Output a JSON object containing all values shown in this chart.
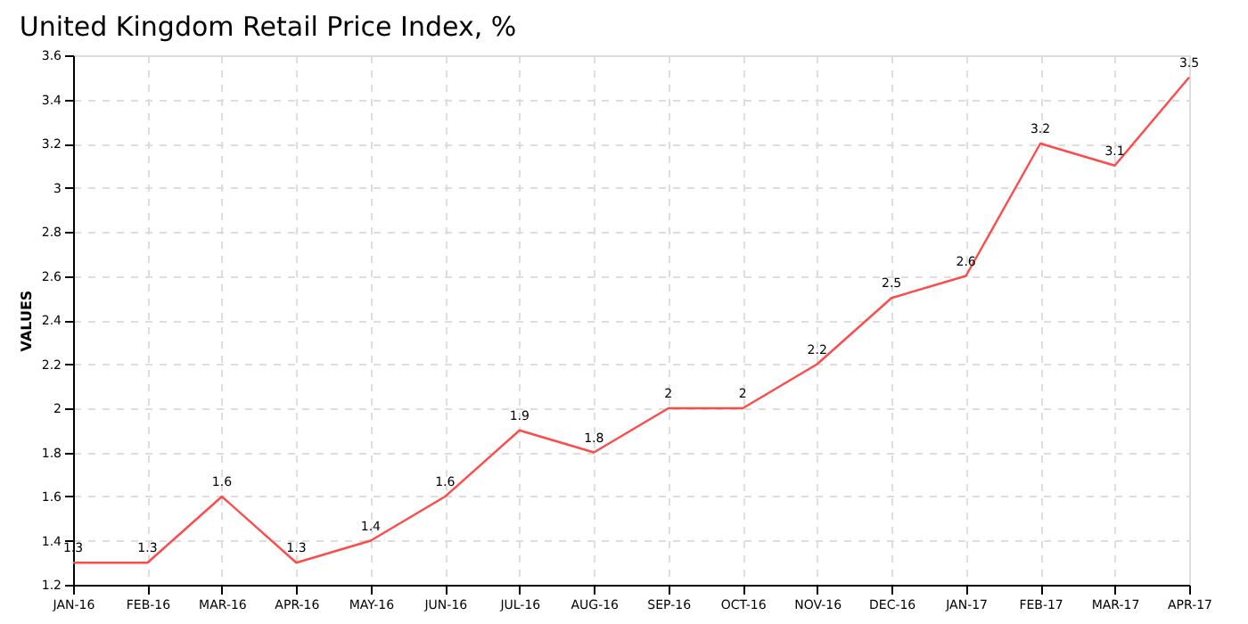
{
  "chart_data": {
    "type": "line",
    "title": "United Kingdom Retail Price Index, %",
    "ylabel": "VALUES",
    "categories": [
      "JAN-16",
      "FEB-16",
      "MAR-16",
      "APR-16",
      "MAY-16",
      "JUN-16",
      "JUL-16",
      "AUG-16",
      "SEP-16",
      "OCT-16",
      "NOV-16",
      "DEC-16",
      "JAN-17",
      "FEB-17",
      "MAR-17",
      "APR-17"
    ],
    "series": [
      {
        "color": "#ff4a4a",
        "values": [
          1.3,
          1.3,
          1.6,
          1.3,
          1.4,
          1.6,
          1.9,
          1.8,
          2,
          2,
          2.2,
          2.5,
          2.6,
          3.2,
          3.1,
          3.5
        ]
      }
    ],
    "ylim": [
      1.2,
      3.6
    ],
    "yticks": [
      1.2,
      1.4,
      1.6,
      1.8,
      2,
      2.2,
      2.4,
      2.6,
      2.8,
      3,
      3.2,
      3.4,
      3.6
    ],
    "grid": true,
    "data_labels": true,
    "marker": "none",
    "line_style": "solid",
    "legend": false
  }
}
